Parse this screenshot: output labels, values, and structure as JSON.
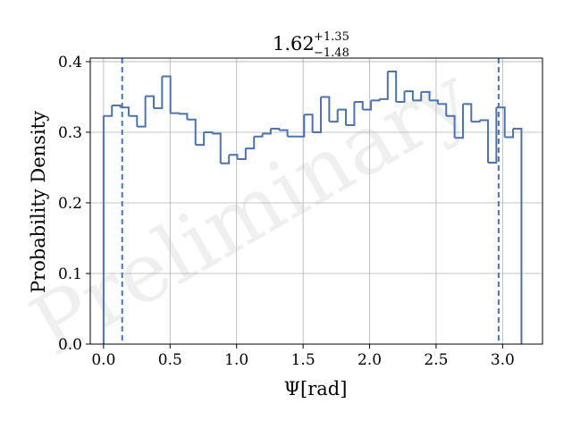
{
  "chart_data": {
    "type": "histogram",
    "title": {
      "main": "1.62",
      "upper": "+1.35",
      "lower": "−1.48"
    },
    "xlabel": "Ψ[rad]",
    "ylabel": "Probability Density",
    "watermark": "Preliminary",
    "xlim": [
      -0.1,
      3.3
    ],
    "ylim": [
      0.0,
      0.405
    ],
    "x_ticks": [
      0.0,
      0.5,
      1.0,
      1.5,
      2.0,
      2.5,
      3.0
    ],
    "x_tick_labels": [
      "0.0",
      "0.5",
      "1.0",
      "1.5",
      "2.0",
      "2.5",
      "3.0"
    ],
    "y_ticks": [
      0.0,
      0.1,
      0.2,
      0.3,
      0.4
    ],
    "y_tick_labels": [
      "0.0",
      "0.1",
      "0.2",
      "0.3",
      "0.4"
    ],
    "grid": true,
    "line_color": "#4c72b0",
    "bin_edges": [
      0.0,
      0.0628,
      0.1257,
      0.1885,
      0.2513,
      0.3142,
      0.377,
      0.4398,
      0.5027,
      0.5655,
      0.6283,
      0.6912,
      0.754,
      0.8168,
      0.8796,
      0.9425,
      1.0053,
      1.0681,
      1.131,
      1.1938,
      1.2566,
      1.3195,
      1.3823,
      1.4451,
      1.508,
      1.5708,
      1.6336,
      1.6965,
      1.7593,
      1.8221,
      1.885,
      1.9478,
      2.0106,
      2.0735,
      2.1363,
      2.1991,
      2.2619,
      2.3248,
      2.3876,
      2.4504,
      2.5133,
      2.5761,
      2.6389,
      2.7018,
      2.7646,
      2.8274,
      2.8903,
      2.9531,
      3.0159,
      3.0788,
      3.1416
    ],
    "densities": [
      0.323,
      0.338,
      0.335,
      0.323,
      0.308,
      0.351,
      0.334,
      0.379,
      0.327,
      0.326,
      0.318,
      0.282,
      0.3,
      0.298,
      0.256,
      0.268,
      0.262,
      0.277,
      0.294,
      0.298,
      0.305,
      0.303,
      0.294,
      0.294,
      0.325,
      0.3,
      0.35,
      0.315,
      0.332,
      0.31,
      0.343,
      0.332,
      0.345,
      0.347,
      0.386,
      0.343,
      0.358,
      0.345,
      0.357,
      0.345,
      0.34,
      0.323,
      0.292,
      0.34,
      0.315,
      0.317,
      0.257,
      0.335,
      0.293,
      0.305
    ],
    "interval_lines": [
      0.14,
      2.97
    ]
  }
}
